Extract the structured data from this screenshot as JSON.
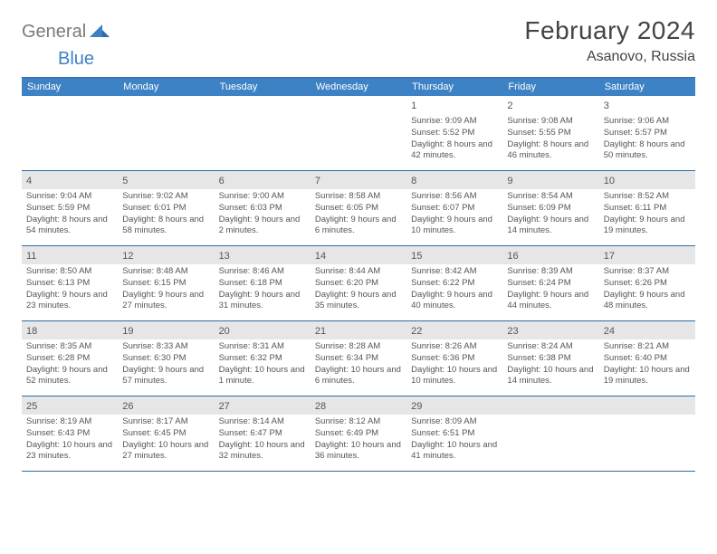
{
  "brand": {
    "part1": "General",
    "part2": "Blue"
  },
  "title": "February 2024",
  "location": "Asanovo, Russia",
  "colors": {
    "header_bg": "#3d82c4",
    "divider": "#2e6da4",
    "daynum_bg": "#e6e6e6",
    "text": "#555555",
    "title_text": "#444444"
  },
  "weekdays": [
    "Sunday",
    "Monday",
    "Tuesday",
    "Wednesday",
    "Thursday",
    "Friday",
    "Saturday"
  ],
  "weeks": [
    [
      {
        "blank": true
      },
      {
        "blank": true
      },
      {
        "blank": true
      },
      {
        "blank": true
      },
      {
        "n": "1",
        "sunrise": "9:09 AM",
        "sunset": "5:52 PM",
        "daylight": "8 hours and 42 minutes."
      },
      {
        "n": "2",
        "sunrise": "9:08 AM",
        "sunset": "5:55 PM",
        "daylight": "8 hours and 46 minutes."
      },
      {
        "n": "3",
        "sunrise": "9:06 AM",
        "sunset": "5:57 PM",
        "daylight": "8 hours and 50 minutes."
      }
    ],
    [
      {
        "n": "4",
        "sunrise": "9:04 AM",
        "sunset": "5:59 PM",
        "daylight": "8 hours and 54 minutes."
      },
      {
        "n": "5",
        "sunrise": "9:02 AM",
        "sunset": "6:01 PM",
        "daylight": "8 hours and 58 minutes."
      },
      {
        "n": "6",
        "sunrise": "9:00 AM",
        "sunset": "6:03 PM",
        "daylight": "9 hours and 2 minutes."
      },
      {
        "n": "7",
        "sunrise": "8:58 AM",
        "sunset": "6:05 PM",
        "daylight": "9 hours and 6 minutes."
      },
      {
        "n": "8",
        "sunrise": "8:56 AM",
        "sunset": "6:07 PM",
        "daylight": "9 hours and 10 minutes."
      },
      {
        "n": "9",
        "sunrise": "8:54 AM",
        "sunset": "6:09 PM",
        "daylight": "9 hours and 14 minutes."
      },
      {
        "n": "10",
        "sunrise": "8:52 AM",
        "sunset": "6:11 PM",
        "daylight": "9 hours and 19 minutes."
      }
    ],
    [
      {
        "n": "11",
        "sunrise": "8:50 AM",
        "sunset": "6:13 PM",
        "daylight": "9 hours and 23 minutes."
      },
      {
        "n": "12",
        "sunrise": "8:48 AM",
        "sunset": "6:15 PM",
        "daylight": "9 hours and 27 minutes."
      },
      {
        "n": "13",
        "sunrise": "8:46 AM",
        "sunset": "6:18 PM",
        "daylight": "9 hours and 31 minutes."
      },
      {
        "n": "14",
        "sunrise": "8:44 AM",
        "sunset": "6:20 PM",
        "daylight": "9 hours and 35 minutes."
      },
      {
        "n": "15",
        "sunrise": "8:42 AM",
        "sunset": "6:22 PM",
        "daylight": "9 hours and 40 minutes."
      },
      {
        "n": "16",
        "sunrise": "8:39 AM",
        "sunset": "6:24 PM",
        "daylight": "9 hours and 44 minutes."
      },
      {
        "n": "17",
        "sunrise": "8:37 AM",
        "sunset": "6:26 PM",
        "daylight": "9 hours and 48 minutes."
      }
    ],
    [
      {
        "n": "18",
        "sunrise": "8:35 AM",
        "sunset": "6:28 PM",
        "daylight": "9 hours and 52 minutes."
      },
      {
        "n": "19",
        "sunrise": "8:33 AM",
        "sunset": "6:30 PM",
        "daylight": "9 hours and 57 minutes."
      },
      {
        "n": "20",
        "sunrise": "8:31 AM",
        "sunset": "6:32 PM",
        "daylight": "10 hours and 1 minute."
      },
      {
        "n": "21",
        "sunrise": "8:28 AM",
        "sunset": "6:34 PM",
        "daylight": "10 hours and 6 minutes."
      },
      {
        "n": "22",
        "sunrise": "8:26 AM",
        "sunset": "6:36 PM",
        "daylight": "10 hours and 10 minutes."
      },
      {
        "n": "23",
        "sunrise": "8:24 AM",
        "sunset": "6:38 PM",
        "daylight": "10 hours and 14 minutes."
      },
      {
        "n": "24",
        "sunrise": "8:21 AM",
        "sunset": "6:40 PM",
        "daylight": "10 hours and 19 minutes."
      }
    ],
    [
      {
        "n": "25",
        "sunrise": "8:19 AM",
        "sunset": "6:43 PM",
        "daylight": "10 hours and 23 minutes."
      },
      {
        "n": "26",
        "sunrise": "8:17 AM",
        "sunset": "6:45 PM",
        "daylight": "10 hours and 27 minutes."
      },
      {
        "n": "27",
        "sunrise": "8:14 AM",
        "sunset": "6:47 PM",
        "daylight": "10 hours and 32 minutes."
      },
      {
        "n": "28",
        "sunrise": "8:12 AM",
        "sunset": "6:49 PM",
        "daylight": "10 hours and 36 minutes."
      },
      {
        "n": "29",
        "sunrise": "8:09 AM",
        "sunset": "6:51 PM",
        "daylight": "10 hours and 41 minutes."
      },
      {
        "blank": true
      },
      {
        "blank": true
      }
    ]
  ],
  "labels": {
    "sunrise": "Sunrise: ",
    "sunset": "Sunset: ",
    "daylight": "Daylight: "
  }
}
